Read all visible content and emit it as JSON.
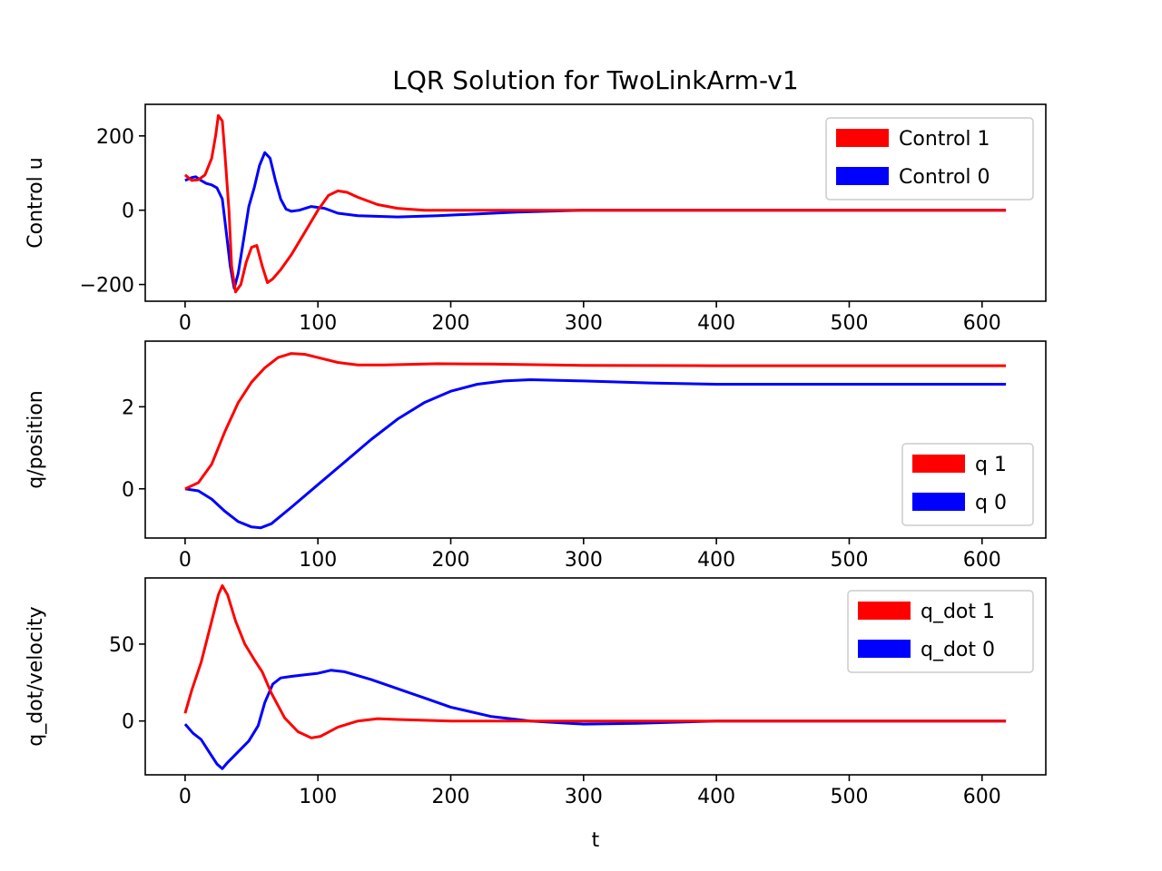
{
  "figure": {
    "title": "LQR Solution for TwoLinkArm-v1",
    "xlabel": "t"
  },
  "colors": {
    "series1": "#ff0000",
    "series0": "#0000ff",
    "axes": "#000000",
    "legend_border": "#cccccc"
  },
  "chart_data": [
    {
      "type": "line",
      "ylabel": "Control u",
      "xlim": [
        -30,
        648
      ],
      "ylim": [
        -245,
        285
      ],
      "xticks": [
        0,
        100,
        200,
        300,
        400,
        500,
        600
      ],
      "yticks": [
        -200,
        0,
        200
      ],
      "ytick_labels": [
        "−200",
        "0",
        "200"
      ],
      "legend": {
        "position": "upper right"
      },
      "series": [
        {
          "name": "Control 1",
          "color": "#ff0000",
          "points": [
            [
              0,
              95
            ],
            [
              5,
              80
            ],
            [
              10,
              82
            ],
            [
              15,
              95
            ],
            [
              20,
              140
            ],
            [
              23,
              200
            ],
            [
              25,
              255
            ],
            [
              28,
              240
            ],
            [
              30,
              150
            ],
            [
              33,
              0
            ],
            [
              35,
              -150
            ],
            [
              38,
              -220
            ],
            [
              42,
              -200
            ],
            [
              46,
              -140
            ],
            [
              50,
              -100
            ],
            [
              54,
              -95
            ],
            [
              58,
              -150
            ],
            [
              62,
              -195
            ],
            [
              66,
              -185
            ],
            [
              72,
              -160
            ],
            [
              80,
              -120
            ],
            [
              90,
              -60
            ],
            [
              100,
              0
            ],
            [
              108,
              40
            ],
            [
              115,
              52
            ],
            [
              122,
              48
            ],
            [
              130,
              35
            ],
            [
              145,
              15
            ],
            [
              160,
              5
            ],
            [
              180,
              0
            ],
            [
              220,
              0
            ],
            [
              618,
              0
            ]
          ]
        },
        {
          "name": "Control 0",
          "color": "#0000ff",
          "points": [
            [
              0,
              80
            ],
            [
              5,
              88
            ],
            [
              8,
              90
            ],
            [
              12,
              80
            ],
            [
              16,
              72
            ],
            [
              20,
              68
            ],
            [
              24,
              60
            ],
            [
              28,
              30
            ],
            [
              31,
              -60
            ],
            [
              34,
              -150
            ],
            [
              37,
              -210
            ],
            [
              40,
              -170
            ],
            [
              44,
              -80
            ],
            [
              48,
              10
            ],
            [
              52,
              60
            ],
            [
              56,
              120
            ],
            [
              60,
              155
            ],
            [
              64,
              140
            ],
            [
              68,
              80
            ],
            [
              72,
              30
            ],
            [
              76,
              3
            ],
            [
              80,
              -3
            ],
            [
              86,
              0
            ],
            [
              95,
              10
            ],
            [
              105,
              5
            ],
            [
              115,
              -8
            ],
            [
              130,
              -15
            ],
            [
              160,
              -18
            ],
            [
              190,
              -15
            ],
            [
              250,
              -5
            ],
            [
              300,
              0
            ],
            [
              618,
              0
            ]
          ]
        }
      ]
    },
    {
      "type": "line",
      "ylabel": "q/position",
      "xlim": [
        -30,
        648
      ],
      "ylim": [
        -1.2,
        3.6
      ],
      "xticks": [
        0,
        100,
        200,
        300,
        400,
        500,
        600
      ],
      "yticks": [
        0,
        2
      ],
      "ytick_labels": [
        "0",
        "2"
      ],
      "legend": {
        "position": "lower right"
      },
      "series": [
        {
          "name": "q 1",
          "color": "#ff0000",
          "points": [
            [
              0,
              0
            ],
            [
              10,
              0.15
            ],
            [
              20,
              0.6
            ],
            [
              30,
              1.4
            ],
            [
              40,
              2.1
            ],
            [
              50,
              2.6
            ],
            [
              60,
              2.95
            ],
            [
              70,
              3.2
            ],
            [
              80,
              3.3
            ],
            [
              90,
              3.28
            ],
            [
              100,
              3.2
            ],
            [
              115,
              3.08
            ],
            [
              130,
              3.02
            ],
            [
              150,
              3.02
            ],
            [
              190,
              3.05
            ],
            [
              230,
              3.04
            ],
            [
              300,
              3.01
            ],
            [
              400,
              3.0
            ],
            [
              618,
              3.0
            ]
          ]
        },
        {
          "name": "q 0",
          "color": "#0000ff",
          "points": [
            [
              0,
              0
            ],
            [
              10,
              -0.05
            ],
            [
              20,
              -0.25
            ],
            [
              30,
              -0.55
            ],
            [
              40,
              -0.8
            ],
            [
              50,
              -0.93
            ],
            [
              57,
              -0.95
            ],
            [
              65,
              -0.85
            ],
            [
              80,
              -0.45
            ],
            [
              100,
              0.1
            ],
            [
              120,
              0.65
            ],
            [
              140,
              1.2
            ],
            [
              160,
              1.7
            ],
            [
              180,
              2.1
            ],
            [
              200,
              2.38
            ],
            [
              220,
              2.55
            ],
            [
              240,
              2.63
            ],
            [
              260,
              2.66
            ],
            [
              300,
              2.63
            ],
            [
              350,
              2.58
            ],
            [
              400,
              2.55
            ],
            [
              450,
              2.55
            ],
            [
              618,
              2.55
            ]
          ]
        }
      ]
    },
    {
      "type": "line",
      "ylabel": "q_dot/velocity",
      "xlim": [
        -30,
        648
      ],
      "ylim": [
        -35,
        93
      ],
      "xticks": [
        0,
        100,
        200,
        300,
        400,
        500,
        600
      ],
      "yticks": [
        0,
        50
      ],
      "ytick_labels": [
        "0",
        "50"
      ],
      "xlabel": "t",
      "legend": {
        "position": "upper right"
      },
      "series": [
        {
          "name": "q_dot 1",
          "color": "#ff0000",
          "points": [
            [
              0,
              5
            ],
            [
              5,
              20
            ],
            [
              12,
              38
            ],
            [
              20,
              65
            ],
            [
              25,
              82
            ],
            [
              28,
              88
            ],
            [
              32,
              82
            ],
            [
              38,
              65
            ],
            [
              45,
              50
            ],
            [
              52,
              40
            ],
            [
              58,
              32
            ],
            [
              65,
              18
            ],
            [
              75,
              2
            ],
            [
              85,
              -7
            ],
            [
              95,
              -11
            ],
            [
              102,
              -10
            ],
            [
              115,
              -4
            ],
            [
              130,
              0
            ],
            [
              145,
              1.5
            ],
            [
              160,
              1
            ],
            [
              200,
              0
            ],
            [
              618,
              0
            ]
          ]
        },
        {
          "name": "q_dot 0",
          "color": "#0000ff",
          "points": [
            [
              0,
              -2
            ],
            [
              6,
              -8
            ],
            [
              12,
              -12
            ],
            [
              18,
              -20
            ],
            [
              24,
              -28
            ],
            [
              28,
              -31
            ],
            [
              32,
              -27
            ],
            [
              40,
              -20
            ],
            [
              48,
              -13
            ],
            [
              55,
              -3
            ],
            [
              60,
              12
            ],
            [
              66,
              24
            ],
            [
              72,
              28
            ],
            [
              80,
              29
            ],
            [
              90,
              30
            ],
            [
              100,
              31
            ],
            [
              110,
              33
            ],
            [
              120,
              32
            ],
            [
              140,
              27
            ],
            [
              160,
              21
            ],
            [
              180,
              15
            ],
            [
              200,
              9
            ],
            [
              230,
              3
            ],
            [
              260,
              0
            ],
            [
              300,
              -2
            ],
            [
              340,
              -1.5
            ],
            [
              400,
              0
            ],
            [
              618,
              0
            ]
          ]
        }
      ]
    }
  ]
}
